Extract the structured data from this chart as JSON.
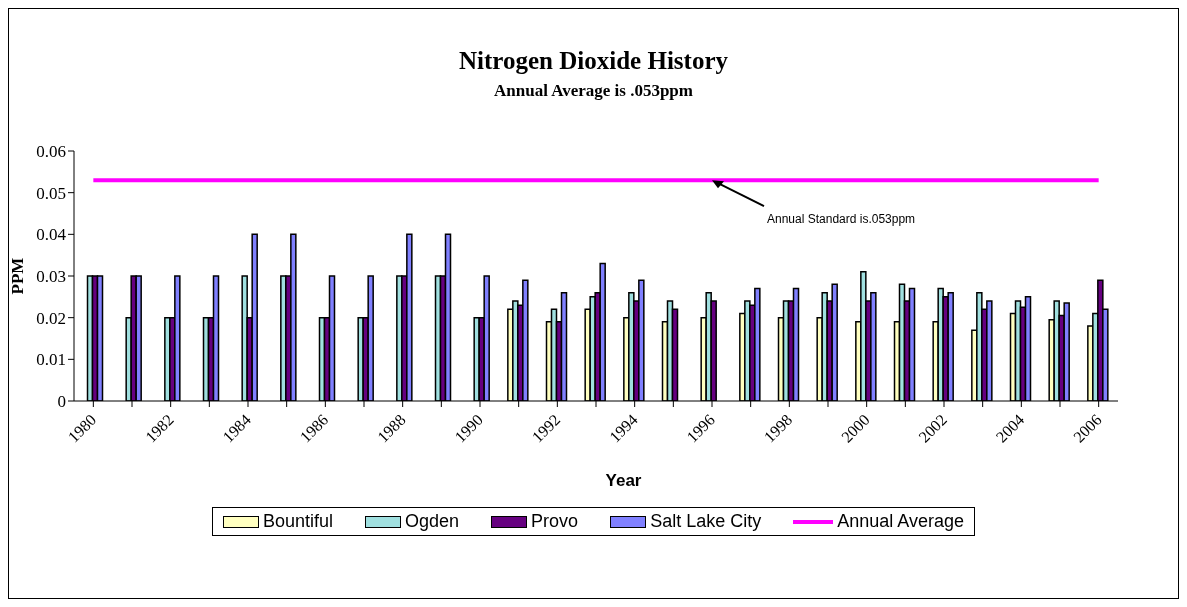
{
  "chart_data": {
    "type": "bar",
    "title": "Nitrogen Dioxide History",
    "subtitle": "Annual Average is .053ppm",
    "xlabel": "Year",
    "ylabel": "PPM",
    "categories": [
      "1980",
      null,
      "1982",
      null,
      "1984",
      null,
      "1986",
      null,
      "1988",
      null,
      "1990",
      null,
      "1992",
      null,
      "1994",
      null,
      "1996",
      null,
      "1998",
      null,
      "2000",
      null,
      "2002",
      null,
      "2004",
      null,
      "2006"
    ],
    "series": [
      {
        "name": "Bountiful",
        "color": "#ffffc0",
        "values": [
          null,
          null,
          null,
          null,
          null,
          null,
          null,
          null,
          null,
          null,
          null,
          0.022,
          0.019,
          0.022,
          0.02,
          0.019,
          0.02,
          0.021,
          0.02,
          0.02,
          0.019,
          0.019,
          0.019,
          0.017,
          0.021,
          0.0195,
          0.018
        ]
      },
      {
        "name": "Ogden",
        "color": "#a0e0e0",
        "values": [
          0.03,
          0.02,
          0.02,
          0.02,
          0.03,
          0.03,
          0.02,
          0.02,
          0.03,
          0.03,
          0.02,
          0.024,
          0.022,
          0.025,
          0.026,
          0.024,
          0.026,
          0.024,
          0.024,
          0.026,
          0.031,
          0.028,
          0.027,
          0.026,
          0.024,
          0.024,
          0.021
        ]
      },
      {
        "name": "Provo",
        "color": "#660080",
        "values": [
          0.03,
          0.03,
          0.02,
          0.02,
          0.02,
          0.03,
          0.02,
          0.02,
          0.03,
          0.03,
          0.02,
          0.023,
          0.019,
          0.026,
          0.024,
          0.022,
          0.024,
          0.023,
          0.024,
          0.024,
          0.024,
          0.024,
          0.025,
          0.022,
          0.0225,
          0.0205,
          0.029
        ]
      },
      {
        "name": "Salt Lake City",
        "color": "#8080ff",
        "values": [
          0.03,
          0.03,
          0.03,
          0.03,
          0.04,
          0.04,
          0.03,
          0.03,
          0.04,
          0.04,
          0.03,
          0.029,
          0.026,
          0.033,
          0.029,
          null,
          null,
          0.027,
          0.027,
          0.028,
          0.026,
          0.027,
          0.026,
          0.024,
          0.025,
          0.0235,
          0.022
        ]
      },
      {
        "name": "Annual Average",
        "type": "line",
        "color": "#ff00ff",
        "values": [
          0.053,
          0.053,
          0.053,
          0.053,
          0.053,
          0.053,
          0.053,
          0.053,
          0.053,
          0.053,
          0.053,
          0.053,
          0.053,
          0.053,
          0.053,
          0.053,
          0.053,
          0.053,
          0.053,
          0.053,
          0.053,
          0.053,
          0.053,
          0.053,
          0.053,
          0.053,
          0.053
        ]
      }
    ],
    "ylim": [
      0,
      0.06
    ],
    "yticks": [
      0,
      0.01,
      0.02,
      0.03,
      0.04,
      0.05,
      0.06
    ],
    "annotations": [
      {
        "text": "Annual Standard is.053ppm",
        "x": "1996",
        "y": 0.053
      }
    ],
    "grid": false,
    "legend": "bottom",
    "marker": "none",
    "line_style": "solid"
  }
}
